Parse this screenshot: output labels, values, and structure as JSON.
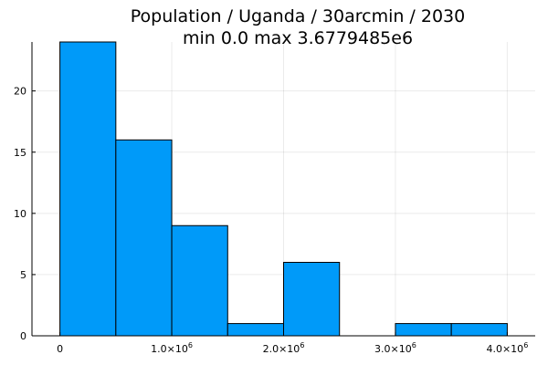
{
  "chart_data": {
    "type": "bar",
    "title": "Population / Uganda / 30arcmin / 2030",
    "subtitle": "min 0.0  max 3.6779485e6",
    "bin_edges": [
      0,
      500000,
      1000000,
      1500000,
      2000000,
      2500000,
      3000000,
      3500000,
      4000000
    ],
    "values": [
      24,
      16,
      9,
      1,
      6,
      0,
      1,
      1
    ],
    "xlim": [
      -250000,
      4250000
    ],
    "ylim": [
      0,
      24
    ],
    "x_ticks": [
      {
        "value": 0,
        "label": "0",
        "exponent": ""
      },
      {
        "value": 1000000,
        "label": "1.0×10",
        "exponent": "6"
      },
      {
        "value": 2000000,
        "label": "2.0×10",
        "exponent": "6"
      },
      {
        "value": 3000000,
        "label": "3.0×10",
        "exponent": "6"
      },
      {
        "value": 4000000,
        "label": "4.0×10",
        "exponent": "6"
      }
    ],
    "y_ticks": [
      {
        "value": 0,
        "label": "0"
      },
      {
        "value": 5,
        "label": "5"
      },
      {
        "value": 10,
        "label": "10"
      },
      {
        "value": 15,
        "label": "15"
      },
      {
        "value": 20,
        "label": "20"
      }
    ],
    "bar_color": "#009AF9",
    "grid": true,
    "legend": false
  }
}
